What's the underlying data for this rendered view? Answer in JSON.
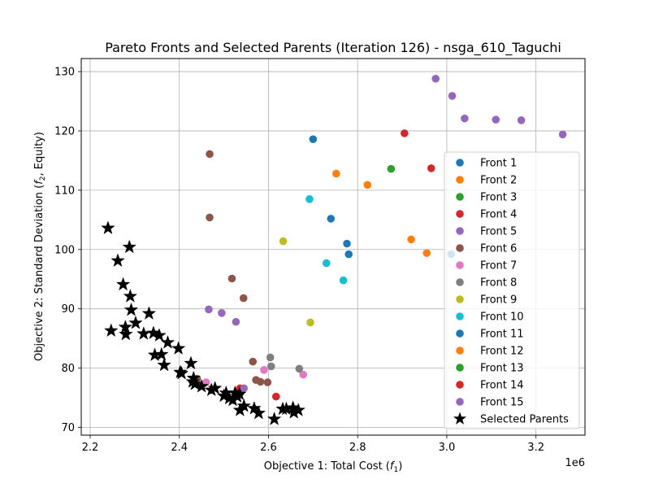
{
  "chart_data": {
    "type": "scatter",
    "title": "Pareto Fronts and Selected Parents (Iteration 126) - nsga_610_Taguchi",
    "xlabel": "Objective 1: Total Cost (f1)",
    "ylabel": "Objective 2: Standard Deviation (f2, Equity)",
    "x_offset_text": "1e6",
    "xlim": [
      2.18,
      3.31
    ],
    "ylim": [
      68.7,
      132.2
    ],
    "x_ticks": [
      "2.2",
      "2.4",
      "2.6",
      "2.8",
      "3.0",
      "3.2"
    ],
    "x_tick_values": [
      2.2,
      2.4,
      2.6,
      2.8,
      3.0,
      3.2
    ],
    "y_ticks": [
      "70",
      "80",
      "90",
      "100",
      "110",
      "120",
      "130"
    ],
    "y_tick_values": [
      70,
      80,
      90,
      100,
      110,
      120,
      130
    ],
    "grid": true,
    "legend_position": "right",
    "series": [
      {
        "name": "Front 1",
        "color": "#1f77b4",
        "points": [
          [
            2.7,
            118.6
          ],
          [
            2.74,
            105.2
          ],
          [
            2.776,
            101.0
          ],
          [
            2.78,
            99.2
          ]
        ]
      },
      {
        "name": "Front 2",
        "color": "#ff7f0e",
        "points": [
          [
            2.752,
            112.8
          ],
          [
            2.822,
            110.9
          ],
          [
            2.92,
            101.7
          ],
          [
            2.955,
            99.4
          ]
        ]
      },
      {
        "name": "Front 3",
        "color": "#2ca02c",
        "points": [
          [
            2.875,
            113.6
          ]
        ]
      },
      {
        "name": "Front 4",
        "color": "#d62728",
        "points": [
          [
            2.905,
            119.6
          ],
          [
            2.965,
            113.7
          ],
          [
            2.617,
            75.2
          ],
          [
            2.536,
            76.6
          ]
        ]
      },
      {
        "name": "Front 5",
        "color": "#9467bd",
        "points": [
          [
            2.975,
            128.8
          ],
          [
            3.012,
            125.9
          ],
          [
            3.04,
            122.1
          ],
          [
            3.11,
            121.9
          ],
          [
            3.167,
            121.8
          ],
          [
            3.26,
            119.4
          ]
        ]
      },
      {
        "name": "Front 6",
        "color": "#8c564b",
        "points": [
          [
            2.468,
            116.1
          ],
          [
            2.468,
            105.4
          ],
          [
            2.518,
            95.1
          ],
          [
            2.544,
            91.8
          ],
          [
            2.565,
            81.1
          ],
          [
            2.572,
            78.0
          ],
          [
            2.582,
            77.7
          ],
          [
            2.598,
            77.6
          ],
          [
            2.44,
            78.2
          ]
        ]
      },
      {
        "name": "Front 7",
        "color": "#e377c2",
        "points": [
          [
            2.59,
            79.7
          ],
          [
            2.678,
            78.9
          ],
          [
            2.46,
            77.6
          ]
        ]
      },
      {
        "name": "Front 8",
        "color": "#7f7f7f",
        "points": [
          [
            2.604,
            81.8
          ],
          [
            2.606,
            80.3
          ],
          [
            2.669,
            79.9
          ]
        ]
      },
      {
        "name": "Front 9",
        "color": "#bcbd22",
        "points": [
          [
            2.633,
            101.4
          ],
          [
            2.694,
            87.7
          ]
        ]
      },
      {
        "name": "Front 10",
        "color": "#17becf",
        "points": [
          [
            2.692,
            108.5
          ],
          [
            2.73,
            97.7
          ],
          [
            2.768,
            94.8
          ]
        ]
      },
      {
        "name": "Front 11",
        "color": "#1f77b4",
        "points": [
          [
            3.01,
            99.2
          ]
        ]
      },
      {
        "name": "Front 12",
        "color": "#ff7f0e",
        "points": []
      },
      {
        "name": "Front 13",
        "color": "#2ca02c",
        "points": []
      },
      {
        "name": "Front 14",
        "color": "#d62728",
        "points": []
      },
      {
        "name": "Front 15",
        "color": "#9467bd",
        "points": [
          [
            2.466,
            89.9
          ],
          [
            2.495,
            89.3
          ],
          [
            2.527,
            87.8
          ],
          [
            2.545,
            76.6
          ]
        ]
      }
    ],
    "selected_parents": {
      "name": "Selected Parents",
      "color": "#000000",
      "points": [
        [
          2.24,
          103.6
        ],
        [
          2.247,
          86.3
        ],
        [
          2.262,
          98.1
        ],
        [
          2.274,
          94.1
        ],
        [
          2.279,
          86.9
        ],
        [
          2.28,
          85.7
        ],
        [
          2.288,
          100.4
        ],
        [
          2.29,
          92.1
        ],
        [
          2.292,
          89.8
        ],
        [
          2.302,
          87.6
        ],
        [
          2.32,
          85.8
        ],
        [
          2.332,
          89.2
        ],
        [
          2.342,
          85.9
        ],
        [
          2.345,
          82.2
        ],
        [
          2.355,
          85.5
        ],
        [
          2.36,
          82.3
        ],
        [
          2.366,
          80.5
        ],
        [
          2.374,
          84.3
        ],
        [
          2.398,
          83.3
        ],
        [
          2.402,
          79.3
        ],
        [
          2.405,
          79.1
        ],
        [
          2.426,
          80.8
        ],
        [
          2.43,
          77.7
        ],
        [
          2.432,
          78.3
        ],
        [
          2.435,
          77.3
        ],
        [
          2.45,
          76.9
        ],
        [
          2.472,
          76.3
        ],
        [
          2.48,
          76.6
        ],
        [
          2.5,
          75.3
        ],
        [
          2.505,
          75.8
        ],
        [
          2.512,
          74.9
        ],
        [
          2.52,
          74.6
        ],
        [
          2.525,
          75.8
        ],
        [
          2.53,
          75.2
        ],
        [
          2.535,
          75.6
        ],
        [
          2.536,
          72.9
        ],
        [
          2.545,
          73.6
        ],
        [
          2.568,
          73.2
        ],
        [
          2.578,
          72.4
        ],
        [
          2.613,
          71.4
        ],
        [
          2.632,
          73.1
        ],
        [
          2.64,
          73.1
        ],
        [
          2.655,
          73.3
        ],
        [
          2.657,
          72.5
        ],
        [
          2.667,
          72.9
        ]
      ]
    }
  }
}
